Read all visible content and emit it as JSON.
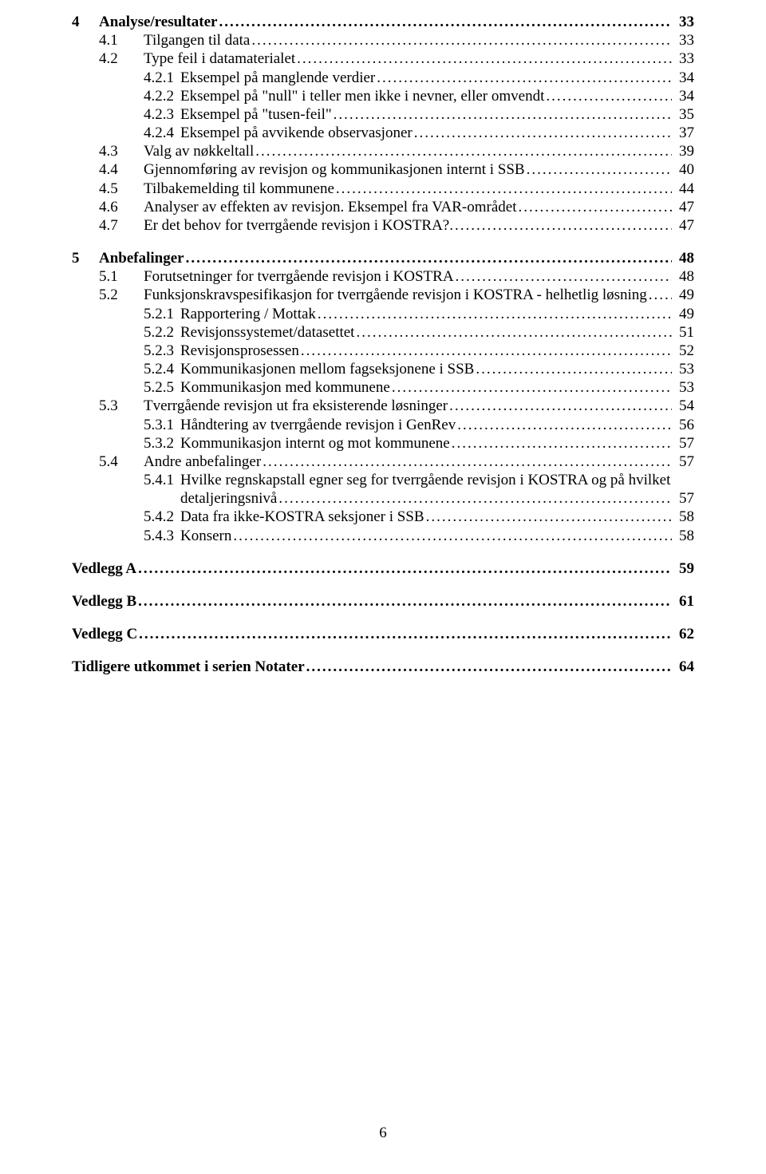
{
  "page_number": "6",
  "entries": [
    {
      "level": 0,
      "bold": true,
      "num": "4",
      "title": "Analyse/resultater",
      "page": "33",
      "gap_before": 0
    },
    {
      "level": 1,
      "bold": false,
      "num": "4.1",
      "title": "Tilgangen til data",
      "page": "33",
      "gap_before": 0
    },
    {
      "level": 1,
      "bold": false,
      "num": "4.2",
      "title": "Type feil i datamaterialet",
      "page": "33",
      "gap_before": 0
    },
    {
      "level": 2,
      "bold": false,
      "num": "4.2.1",
      "title": "Eksempel på manglende verdier",
      "page": "34",
      "gap_before": 0
    },
    {
      "level": 2,
      "bold": false,
      "num": "4.2.2",
      "title": "Eksempel på \"null\" i teller men ikke i nevner, eller omvendt",
      "page": "34",
      "gap_before": 0
    },
    {
      "level": 2,
      "bold": false,
      "num": "4.2.3",
      "title": "Eksempel på \"tusen-feil\"",
      "page": "35",
      "gap_before": 0
    },
    {
      "level": 2,
      "bold": false,
      "num": "4.2.4",
      "title": "Eksempel på avvikende observasjoner",
      "page": "37",
      "gap_before": 0
    },
    {
      "level": 1,
      "bold": false,
      "num": "4.3",
      "title": "Valg av nøkkeltall",
      "page": "39",
      "gap_before": 0
    },
    {
      "level": 1,
      "bold": false,
      "num": "4.4",
      "title": "Gjennomføring av revisjon og kommunikasjonen internt i SSB",
      "page": "40",
      "gap_before": 0
    },
    {
      "level": 1,
      "bold": false,
      "num": "4.5",
      "title": "Tilbakemelding til kommunene",
      "page": "44",
      "gap_before": 0
    },
    {
      "level": 1,
      "bold": false,
      "num": "4.6",
      "title": "Analyser av effekten av revisjon. Eksempel fra VAR-området",
      "page": "47",
      "gap_before": 0
    },
    {
      "level": 1,
      "bold": false,
      "num": "4.7",
      "title": "Er det behov for tverrgående revisjon i KOSTRA?.",
      "page": "47",
      "gap_before": 0
    },
    {
      "level": 0,
      "bold": true,
      "num": "5",
      "title": "Anbefalinger",
      "page": "48",
      "gap_before": 18
    },
    {
      "level": 1,
      "bold": false,
      "num": "5.1",
      "title": "Forutsetninger for tverrgående revisjon i KOSTRA",
      "page": "48",
      "gap_before": 0
    },
    {
      "level": 1,
      "bold": false,
      "num": "5.2",
      "title": "Funksjonskravspesifikasjon for tverrgående revisjon i KOSTRA - helhetlig løsning",
      "page": "49",
      "gap_before": 0
    },
    {
      "level": 2,
      "bold": false,
      "num": "5.2.1",
      "title": "Rapportering / Mottak",
      "page": "49",
      "gap_before": 0
    },
    {
      "level": 2,
      "bold": false,
      "num": "5.2.2",
      "title": "Revisjonssystemet/datasettet",
      "page": "51",
      "gap_before": 0
    },
    {
      "level": 2,
      "bold": false,
      "num": "5.2.3",
      "title": "Revisjonsprosessen",
      "page": "52",
      "gap_before": 0
    },
    {
      "level": 2,
      "bold": false,
      "num": "5.2.4",
      "title": "Kommunikasjonen mellom fagseksjonene i SSB",
      "page": "53",
      "gap_before": 0
    },
    {
      "level": 2,
      "bold": false,
      "num": "5.2.5",
      "title": "Kommunikasjon med kommunene",
      "page": "53",
      "gap_before": 0
    },
    {
      "level": 1,
      "bold": false,
      "num": "5.3",
      "title": "Tverrgående revisjon ut fra eksisterende løsninger",
      "page": "54",
      "gap_before": 0
    },
    {
      "level": 2,
      "bold": false,
      "num": "5.3.1",
      "title": "Håndtering av tverrgående revisjon i GenRev",
      "page": "56",
      "gap_before": 0
    },
    {
      "level": 2,
      "bold": false,
      "num": "5.3.2",
      "title": "Kommunikasjon internt og mot kommunene",
      "page": "57",
      "gap_before": 0
    },
    {
      "level": 1,
      "bold": false,
      "num": "5.4",
      "title": "Andre anbefalinger",
      "page": "57",
      "gap_before": 0
    },
    {
      "level": 2,
      "bold": false,
      "num": "5.4.1",
      "title": "Hvilke regnskapstall egner seg for tverrgående revisjon i KOSTRA og på hvilket",
      "title2": "detaljeringsnivå",
      "page": "57",
      "gap_before": 0,
      "wrap": true
    },
    {
      "level": 2,
      "bold": false,
      "num": "5.4.2",
      "title": "Data fra ikke-KOSTRA seksjoner i SSB",
      "page": "58",
      "gap_before": 0
    },
    {
      "level": 2,
      "bold": false,
      "num": "5.4.3",
      "title": "Konsern",
      "page": "58",
      "gap_before": 0
    },
    {
      "level": -1,
      "bold": true,
      "num": "",
      "title": "Vedlegg A",
      "page": "59",
      "gap_before": 18
    },
    {
      "level": -1,
      "bold": true,
      "num": "",
      "title": "Vedlegg B",
      "page": "61",
      "gap_before": 18
    },
    {
      "level": -1,
      "bold": true,
      "num": "",
      "title": "Vedlegg C",
      "page": " 62",
      "gap_before": 18
    },
    {
      "level": -1,
      "bold": true,
      "num": "",
      "title": "Tidligere utkommet i serien Notater",
      "page": " 64",
      "gap_before": 18
    }
  ]
}
